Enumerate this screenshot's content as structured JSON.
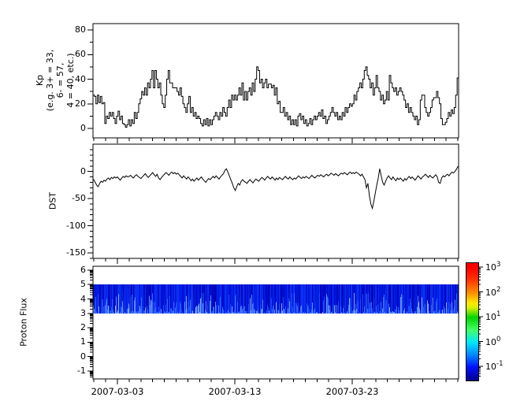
{
  "figure": {
    "background": "#ffffff",
    "line_color": "#000000"
  },
  "xaxis": {
    "tick_labels": [
      "2007-03-03",
      "2007-03-13",
      "2007-03-23"
    ],
    "tick_days": [
      3,
      13,
      23
    ],
    "minor_day_start": 1,
    "minor_day_end": 32
  },
  "chart_data": [
    {
      "id": "kp",
      "type": "line",
      "subtype": "step",
      "ylabel_lines": [
        "Kp",
        "(e.g. 3+ = 33,",
        "6- = 57,",
        "4 = 40, etc.)"
      ],
      "yticks": [
        0,
        20,
        40,
        60,
        80
      ],
      "yminor": [
        10,
        30,
        50,
        70
      ],
      "ylim": [
        -8,
        85
      ],
      "x_range_days": [
        1,
        32
      ],
      "samples_per_day": 8,
      "values": [
        27,
        26,
        20,
        27,
        21,
        26,
        20,
        21,
        4,
        10,
        8,
        13,
        10,
        13,
        8,
        4,
        10,
        14,
        7,
        10,
        4,
        3,
        1,
        3,
        7,
        2,
        7,
        4,
        13,
        8,
        13,
        20,
        24,
        30,
        27,
        33,
        27,
        37,
        33,
        40,
        47,
        33,
        47,
        40,
        33,
        37,
        27,
        20,
        17,
        27,
        40,
        47,
        37,
        37,
        33,
        33,
        33,
        30,
        27,
        33,
        26,
        20,
        17,
        13,
        20,
        26,
        13,
        17,
        10,
        13,
        8,
        10,
        8,
        4,
        2,
        7,
        3,
        8,
        2,
        7,
        3,
        7,
        10,
        13,
        10,
        7,
        13,
        10,
        17,
        13,
        10,
        17,
        23,
        17,
        27,
        23,
        27,
        23,
        27,
        33,
        27,
        37,
        23,
        30,
        23,
        30,
        33,
        27,
        37,
        30,
        40,
        50,
        47,
        37,
        40,
        33,
        37,
        40,
        33,
        36,
        36,
        33,
        35,
        27,
        33,
        20,
        22,
        13,
        13,
        17,
        10,
        13,
        7,
        10,
        3,
        7,
        3,
        7,
        2,
        10,
        12,
        7,
        10,
        4,
        7,
        2,
        4,
        8,
        3,
        7,
        10,
        7,
        10,
        13,
        10,
        15,
        8,
        10,
        4,
        7,
        10,
        13,
        17,
        13,
        10,
        13,
        7,
        10,
        7,
        13,
        10,
        17,
        13,
        17,
        20,
        18,
        20,
        27,
        23,
        30,
        33,
        37,
        33,
        40,
        47,
        50,
        43,
        40,
        33,
        37,
        27,
        33,
        43,
        33,
        30,
        23,
        27,
        20,
        23,
        30,
        23,
        43,
        37,
        33,
        30,
        33,
        27,
        30,
        33,
        30,
        27,
        23,
        17,
        20,
        13,
        17,
        13,
        10,
        7,
        10,
        3,
        7,
        23,
        27,
        27,
        17,
        13,
        10,
        13,
        17,
        23,
        25,
        25,
        30,
        25,
        20,
        8,
        3,
        3,
        5,
        8,
        13,
        10,
        15,
        12,
        17,
        27,
        41
      ]
    },
    {
      "id": "dst",
      "type": "line",
      "ylabel": "DST",
      "yticks": [
        0,
        -50,
        -100,
        -150
      ],
      "yminor_step": 10,
      "ylim": [
        -160,
        50
      ],
      "x_range_days": [
        1,
        32
      ],
      "samples_per_day": 8,
      "values": [
        -15,
        -20,
        -25,
        -28,
        -22,
        -18,
        -20,
        -16,
        -18,
        -14,
        -12,
        -15,
        -11,
        -13,
        -10,
        -12,
        -10,
        -13,
        -16,
        -12,
        -9,
        -11,
        -8,
        -10,
        -9,
        -7,
        -10,
        -12,
        -8,
        -6,
        -9,
        -11,
        -13,
        -10,
        -7,
        -4,
        -8,
        -11,
        -8,
        -5,
        -2,
        -6,
        -9,
        -5,
        -12,
        -15,
        -11,
        -8,
        -5,
        -2,
        -4,
        -7,
        -3,
        -1,
        -4,
        -2,
        -5,
        -3,
        -6,
        -9,
        -12,
        -8,
        -11,
        -14,
        -10,
        -13,
        -17,
        -14,
        -18,
        -15,
        -12,
        -16,
        -13,
        -10,
        -14,
        -17,
        -20,
        -16,
        -13,
        -15,
        -12,
        -9,
        -12,
        -8,
        -11,
        -14,
        -10,
        -7,
        -4,
        2,
        5,
        -1,
        -8,
        -15,
        -22,
        -30,
        -35,
        -28,
        -22,
        -25,
        -18,
        -15,
        -18,
        -20,
        -22,
        -18,
        -15,
        -18,
        -21,
        -17,
        -14,
        -16,
        -18,
        -14,
        -11,
        -13,
        -16,
        -12,
        -9,
        -12,
        -14,
        -10,
        -13,
        -16,
        -12,
        -15,
        -11,
        -13,
        -15,
        -12,
        -9,
        -12,
        -14,
        -10,
        -13,
        -15,
        -12,
        -14,
        -11,
        -8,
        -11,
        -13,
        -10,
        -12,
        -9,
        -11,
        -13,
        -10,
        -7,
        -10,
        -12,
        -9,
        -7,
        -9,
        -6,
        -8,
        -10,
        -7,
        -5,
        -8,
        -6,
        -3,
        -5,
        -7,
        -4,
        -6,
        -8,
        -5,
        -3,
        -5,
        -2,
        -4,
        -6,
        -3,
        -1,
        -4,
        -2,
        -4,
        -1,
        -3,
        -5,
        -8,
        -5,
        -10,
        -15,
        -30,
        -22,
        -45,
        -60,
        -68,
        -55,
        -40,
        -25,
        -12,
        5,
        -8,
        -20,
        -25,
        -18,
        -12,
        -8,
        -12,
        -15,
        -10,
        -14,
        -17,
        -12,
        -15,
        -12,
        -15,
        -18,
        -13,
        -16,
        -12,
        -9,
        -13,
        -10,
        -13,
        -16,
        -12,
        -8,
        -11,
        -14,
        -10,
        -8,
        -5,
        -8,
        -11,
        -7,
        -10,
        -12,
        -9,
        -6,
        -10,
        -20,
        -22,
        -12,
        -8,
        -10,
        -7,
        -5,
        -8,
        -4,
        -1,
        -3,
        0,
        4,
        9
      ]
    },
    {
      "id": "proton_flux",
      "type": "heatmap",
      "ylabel": "Proton Flux",
      "yticks": [
        -1,
        0,
        1,
        2,
        3,
        4,
        5,
        6
      ],
      "ylim": [
        -1.5,
        6.3
      ],
      "band": {
        "y_range": [
          3,
          5
        ],
        "base_colors": [
          "#0007c6",
          "#1233e0"
        ],
        "streak_colors": [
          "#0004b8",
          "#0010d6",
          "#0020e8",
          "#0c2ff2"
        ],
        "bottom_streak_colors": [
          "#1d4af5",
          "#3468ff",
          "#5d8fff",
          "#82adff"
        ]
      }
    },
    {
      "id": "colorbar",
      "type": "colorbar",
      "scale": "log",
      "tick_exponents": [
        3,
        2,
        1,
        0,
        -1
      ],
      "range_exponents": [
        -1.54,
        3.19
      ],
      "colormap": "jet"
    }
  ]
}
